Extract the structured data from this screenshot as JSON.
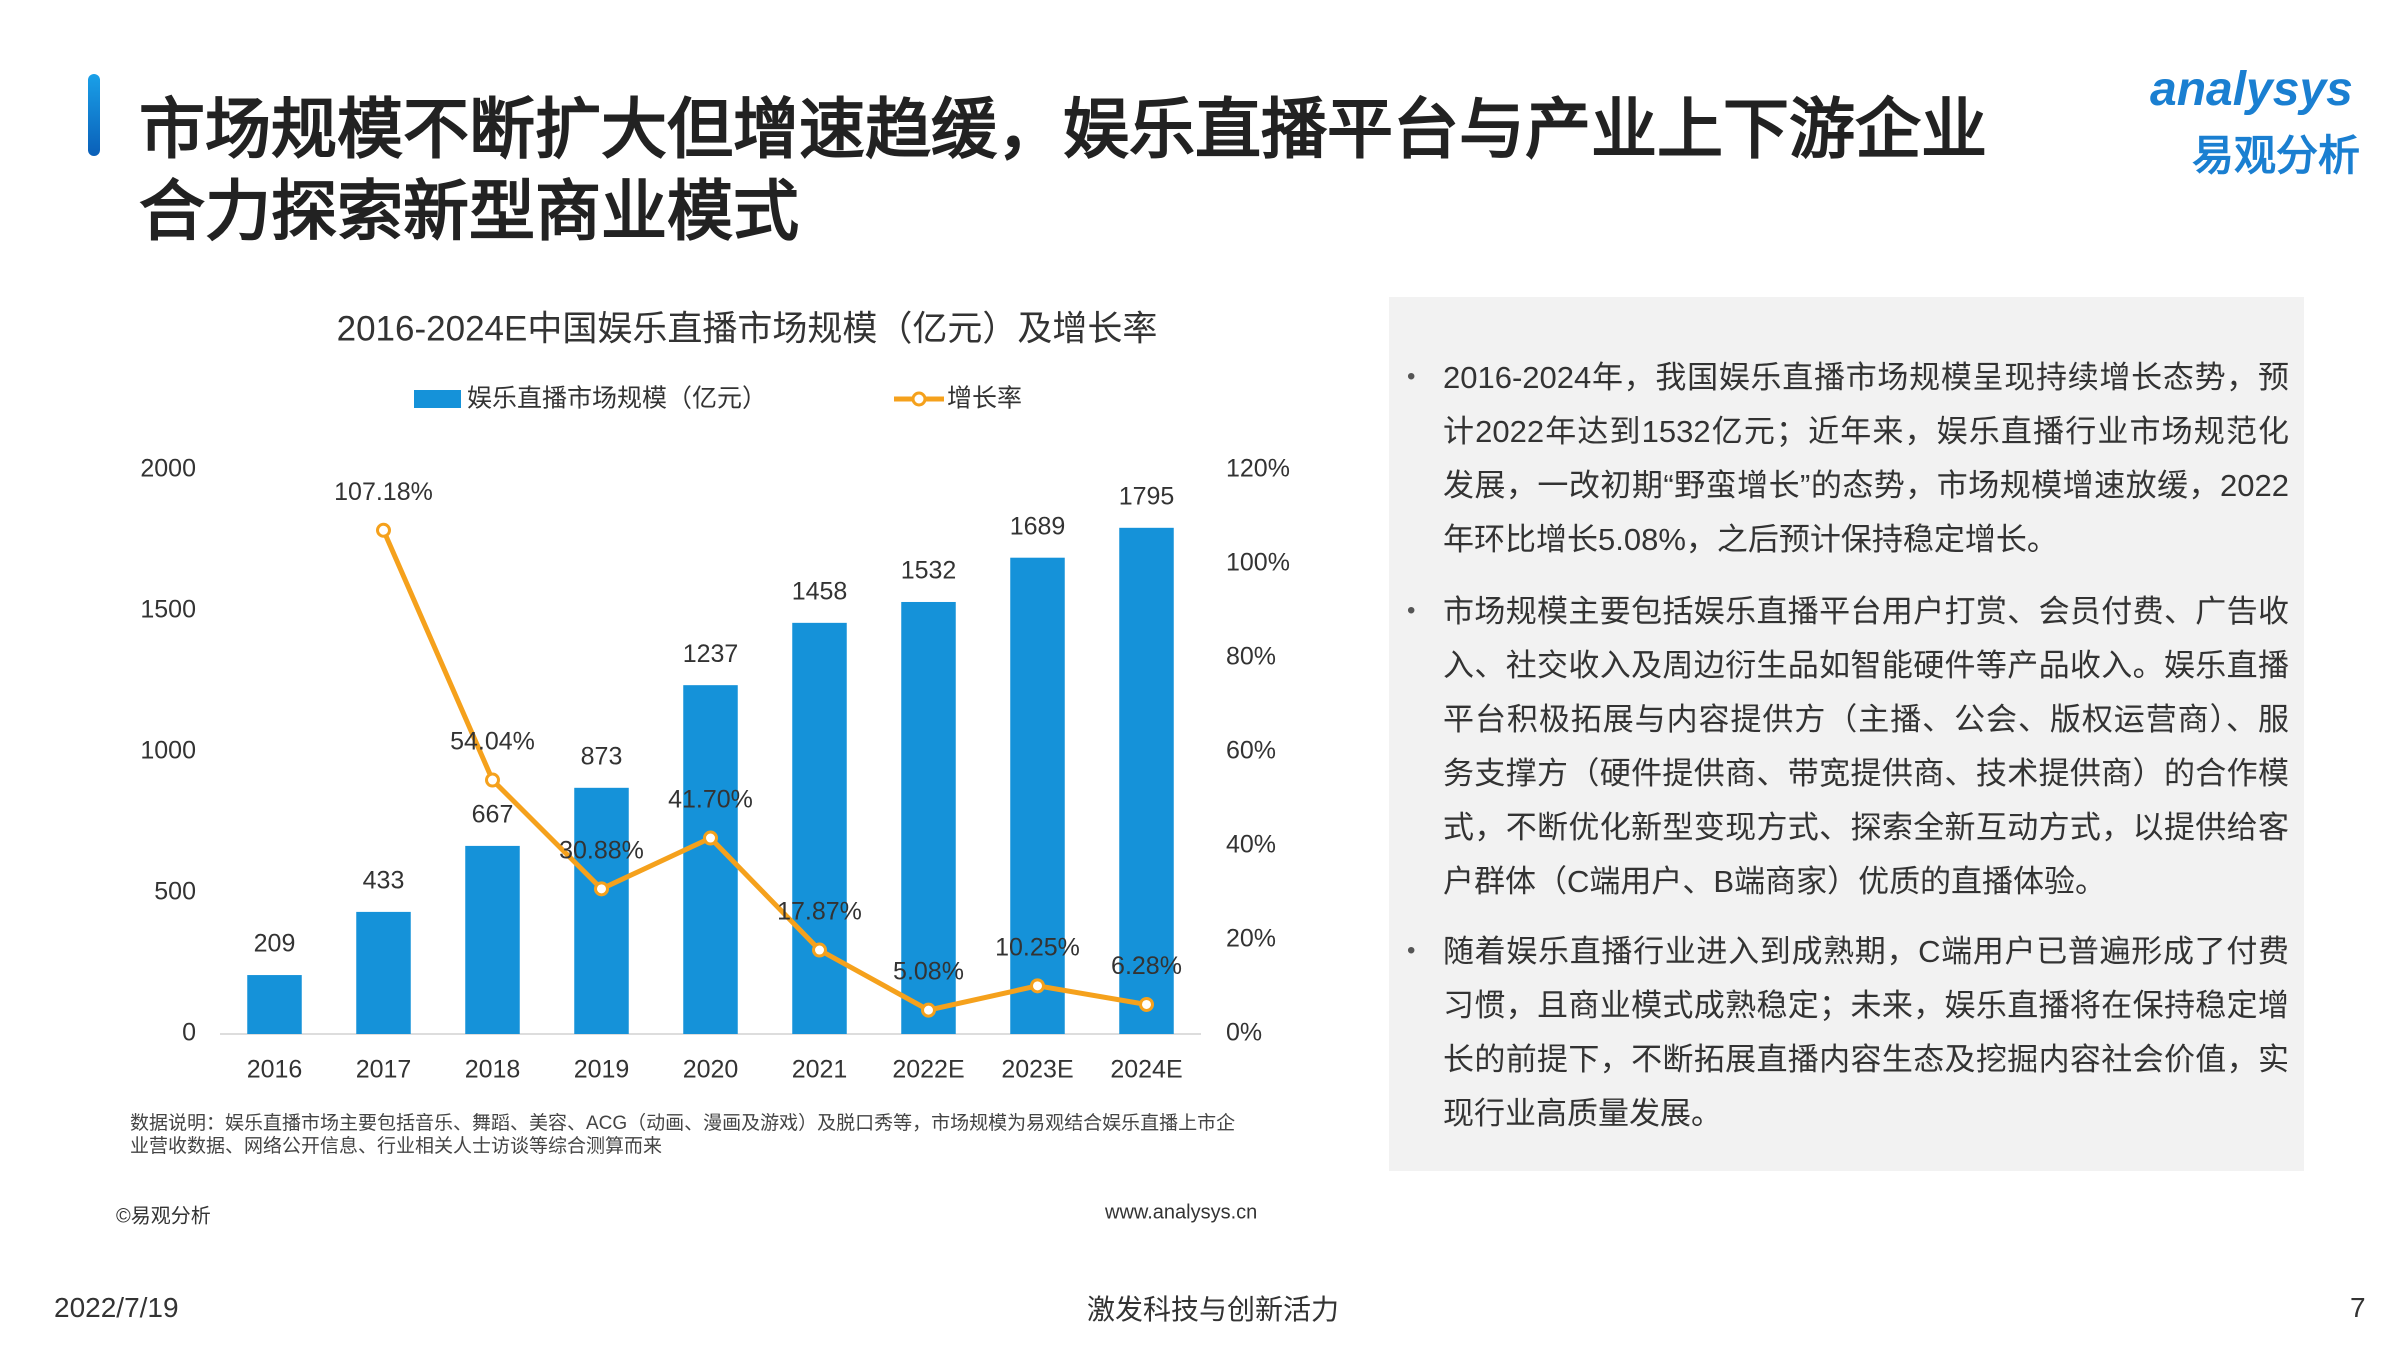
{
  "title": [
    "市场规模不断扩大但增速趋缓，娱乐直播平台与产业上下游企业",
    "合力探索新型商业模式"
  ],
  "logo": {
    "name": "analysys",
    "cn": "易观分析"
  },
  "chart_data": {
    "type": "bar",
    "title": "2016-2024E中国娱乐直播市场规模（亿元）及增长率",
    "categories": [
      "2016",
      "2017",
      "2018",
      "2019",
      "2020",
      "2021",
      "2022E",
      "2023E",
      "2024E"
    ],
    "series": [
      {
        "name": "娱乐直播市场规模（亿元）",
        "type": "bar",
        "color": "#1592d9",
        "values": [
          209,
          433,
          667,
          873,
          1237,
          1458,
          1532,
          1689,
          1795
        ]
      },
      {
        "name": "增长率",
        "type": "line",
        "axis": "y2",
        "color": "#f5a11c",
        "values": [
          null,
          107.18,
          54.04,
          30.88,
          41.7,
          17.87,
          5.08,
          10.25,
          6.28
        ],
        "value_labels": [
          null,
          "107.18%",
          "54.04%",
          "30.88%",
          "41.70%",
          "17.87%",
          "5.08%",
          "10.25%",
          "6.28%"
        ]
      }
    ],
    "ylim": [
      0,
      2000
    ],
    "yticks": [
      0,
      500,
      1000,
      1500,
      2000
    ],
    "y2lim": [
      0,
      120
    ],
    "y2ticks": [
      {
        "value": 0,
        "label": "0%"
      },
      {
        "value": 20,
        "label": "20%"
      },
      {
        "value": 40,
        "label": "40%"
      },
      {
        "value": 60,
        "label": "60%"
      },
      {
        "value": 80,
        "label": "80%"
      },
      {
        "value": 100,
        "label": "100%"
      },
      {
        "value": 120,
        "label": "120%"
      }
    ],
    "grid": false,
    "note": "数据说明：娱乐直播市场主要包括音乐、舞蹈、美容、ACG（动画、漫画及游戏）及脱口秀等，市场规模为易观结合娱乐直播上市企业营收数据、网络公开信息、行业相关人士访谈等综合测算而来",
    "source": "©易观分析",
    "website": "www.analysys.cn"
  },
  "bullets": [
    "2016-2024年，我国娱乐直播市场规模呈现持续增长态势，预计2022年达到1532亿元；近年来，娱乐直播行业市场规范化发展，一改初期“野蛮增长”的态势，市场规模增速放缓，2022年环比增长5.08%，之后预计保持稳定增长。",
    "市场规模主要包括娱乐直播平台用户打赏、会员付费、广告收入、社交收入及周边衍生品如智能硬件等产品收入。娱乐直播平台积极拓展与内容提供方（主播、公会、版权运营商）、服务支撑方（硬件提供商、带宽提供商、技术提供商）的合作模式，不断优化新型变现方式、探索全新互动方式，以提供给客户群体（C端用户、B端商家）优质的直播体验。",
    "随着娱乐直播行业进入到成熟期，C端用户已普遍形成了付费习惯，且商业模式成熟稳定；未来，娱乐直播将在保持稳定增长的前提下，不断拓展直播内容生态及挖掘内容社会价值，实现行业高质量发展。"
  ],
  "footer": {
    "date": "2022/7/19",
    "slogan": "激发科技与创新活力",
    "page": "7"
  }
}
